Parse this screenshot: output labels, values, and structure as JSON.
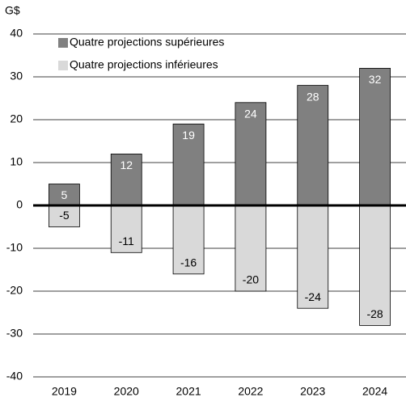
{
  "chart_data": {
    "type": "bar",
    "y_unit": "G$",
    "categories": [
      "2019",
      "2020",
      "2021",
      "2022",
      "2023",
      "2024"
    ],
    "series": [
      {
        "name": "Quatre projections supérieures",
        "color": "#808080",
        "label_color": "#ffffff",
        "values": [
          5,
          12,
          19,
          24,
          28,
          32
        ]
      },
      {
        "name": "Quatre projections inférieures",
        "color": "#d9d9d9",
        "label_color": "#000000",
        "values": [
          -5,
          -11,
          -16,
          -20,
          -24,
          -28
        ]
      }
    ],
    "ylim": [
      -40,
      40
    ],
    "yticks": [
      -40,
      -30,
      -20,
      -10,
      0,
      10,
      20,
      30,
      40
    ],
    "grid": true,
    "legend": "top-left"
  }
}
